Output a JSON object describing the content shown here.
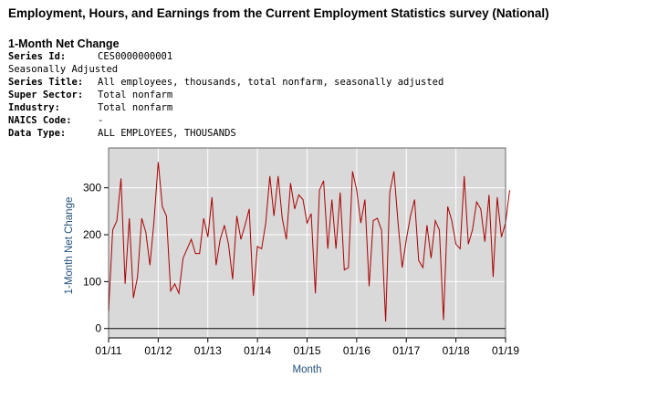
{
  "header": {
    "title": "Employment, Hours, and Earnings from the Current Employment Statistics survey (National)",
    "subtitle": "1-Month Net Change"
  },
  "series_info": {
    "series_id_label": "Series Id:",
    "series_id": "CES0000000001",
    "adjustment": "Seasonally Adjusted",
    "series_title_label": "Series Title:",
    "series_title": "All employees, thousands, total nonfarm, seasonally adjusted",
    "super_sector_label": "Super Sector:",
    "super_sector": "Total nonfarm",
    "industry_label": "Industry:",
    "industry": "Total nonfarm",
    "naics_label": "NAICS Code:",
    "naics": "-",
    "data_type_label": "Data Type:",
    "data_type": "ALL EMPLOYEES, THOUSANDS"
  },
  "chart_data": {
    "type": "line",
    "title": "",
    "xlabel": "Month",
    "ylabel": "1-Month Net Change",
    "x_range": [
      2011,
      2019
    ],
    "ylim": [
      -20,
      385
    ],
    "yticks": [
      0,
      100,
      200,
      300
    ],
    "xticks": [
      {
        "label": "01/11",
        "value": 2011
      },
      {
        "label": "01/12",
        "value": 2012
      },
      {
        "label": "01/13",
        "value": 2013
      },
      {
        "label": "01/14",
        "value": 2014
      },
      {
        "label": "01/15",
        "value": 2015
      },
      {
        "label": "01/16",
        "value": 2016
      },
      {
        "label": "01/17",
        "value": 2017
      },
      {
        "label": "01/18",
        "value": 2018
      },
      {
        "label": "01/19",
        "value": 2019
      }
    ],
    "grid": true,
    "background": "#d9d9d9",
    "line_color": "#aa0000",
    "series": [
      {
        "name": "1-Month Net Change",
        "start": "2011-01",
        "values": [
          37,
          210,
          230,
          320,
          95,
          235,
          65,
          110,
          235,
          205,
          135,
          230,
          355,
          260,
          240,
          80,
          95,
          75,
          150,
          170,
          190,
          160,
          160,
          235,
          195,
          280,
          135,
          190,
          220,
          180,
          105,
          240,
          190,
          220,
          255,
          70,
          175,
          170,
          225,
          325,
          240,
          325,
          235,
          190,
          310,
          255,
          285,
          275,
          225,
          245,
          75,
          295,
          315,
          170,
          275,
          170,
          290,
          125,
          130,
          335,
          295,
          225,
          275,
          90,
          230,
          235,
          210,
          15,
          290,
          335,
          225,
          130,
          190,
          240,
          275,
          145,
          130,
          220,
          150,
          230,
          210,
          18,
          260,
          230,
          180,
          170,
          325,
          180,
          210,
          270,
          255,
          185,
          285,
          110,
          280,
          195,
          225,
          295
        ]
      }
    ]
  }
}
